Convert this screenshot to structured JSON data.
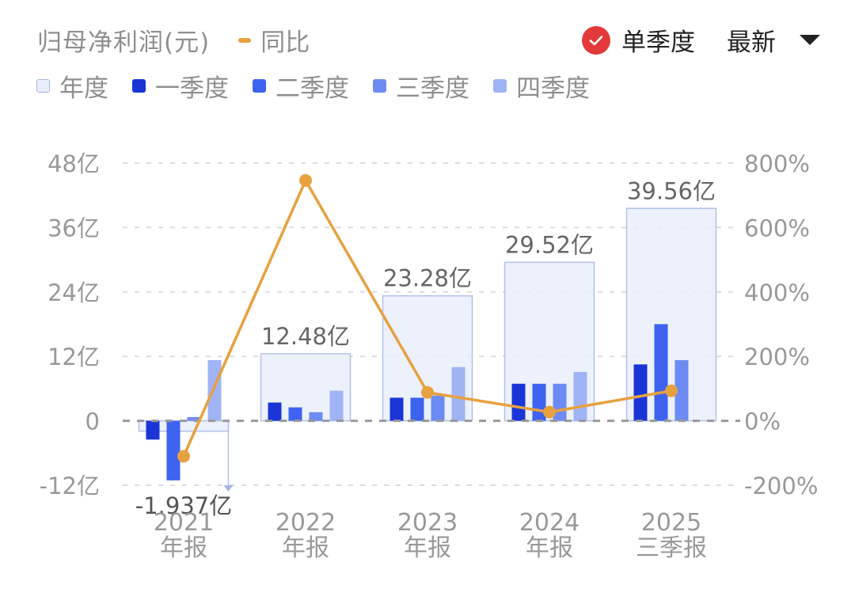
{
  "header": {
    "title": "归母净利润(元)",
    "yoy_legend_label": "同比",
    "single_quarter_label": "单季度",
    "single_quarter_checked": true,
    "sort_label": "最新"
  },
  "legend": [
    {
      "label": "年度",
      "color": "#e9eefc",
      "border": "#a9b7e6"
    },
    {
      "label": "一季度",
      "color": "#1a35d6"
    },
    {
      "label": "二季度",
      "color": "#3d63f0"
    },
    {
      "label": "三季度",
      "color": "#6d8bf2"
    },
    {
      "label": "四季度",
      "color": "#a0b4f5"
    }
  ],
  "colors": {
    "annual_fill": "#e9eefc",
    "annual_border": "#b3c1ea",
    "q1": "#1a35d6",
    "q2": "#3d63f0",
    "q3": "#6d8bf2",
    "q4": "#a0b4f5",
    "yoy_line": "#e7a13f",
    "check_red": "#e23a3a"
  },
  "chart_data": {
    "type": "bar",
    "title": "归母净利润(元)",
    "xlabel": "",
    "ylabel": "归母净利润(亿元)",
    "y2label": "同比(%)",
    "categories": [
      "2021 年报",
      "2022 年报",
      "2023 年报",
      "2024 年报",
      "2025 三季报"
    ],
    "category_lines": [
      [
        "2021",
        "年报"
      ],
      [
        "2022",
        "年报"
      ],
      [
        "2023",
        "年报"
      ],
      [
        "2024",
        "年报"
      ],
      [
        "2025",
        "三季报"
      ]
    ],
    "ylim": [
      -12,
      48
    ],
    "y_ticks": [
      48,
      36,
      24,
      12,
      0,
      -12
    ],
    "y_tick_labels": [
      "48亿",
      "36亿",
      "24亿",
      "12亿",
      "0",
      "-12亿"
    ],
    "y2lim": [
      -200,
      800
    ],
    "y2_ticks": [
      800,
      600,
      400,
      200,
      0,
      -200
    ],
    "y2_tick_labels": [
      "800%",
      "600%",
      "400%",
      "200%",
      "0%",
      "-200%"
    ],
    "grid": true,
    "legend_position": "top",
    "series": [
      {
        "name": "年度",
        "type": "bar",
        "axis": "left",
        "values": [
          -1.937,
          12.48,
          23.28,
          29.52,
          39.56
        ],
        "labels": [
          "-1.937亿",
          "12.48亿",
          "23.28亿",
          "29.52亿",
          "39.56亿"
        ]
      },
      {
        "name": "一季度",
        "type": "bar",
        "axis": "left",
        "values": [
          -3.5,
          3.4,
          4.3,
          6.9,
          10.5
        ]
      },
      {
        "name": "二季度",
        "type": "bar",
        "axis": "left",
        "values": [
          -11.1,
          2.5,
          4.3,
          6.9,
          18.0
        ]
      },
      {
        "name": "三季度",
        "type": "bar",
        "axis": "left",
        "values": [
          0.7,
          1.6,
          4.7,
          6.9,
          11.3
        ]
      },
      {
        "name": "四季度",
        "type": "bar",
        "axis": "left",
        "values": [
          11.3,
          5.6,
          10.0,
          9.1,
          null
        ]
      },
      {
        "name": "同比",
        "type": "line",
        "axis": "right",
        "values": [
          -110,
          746,
          88,
          27,
          93
        ]
      }
    ]
  }
}
